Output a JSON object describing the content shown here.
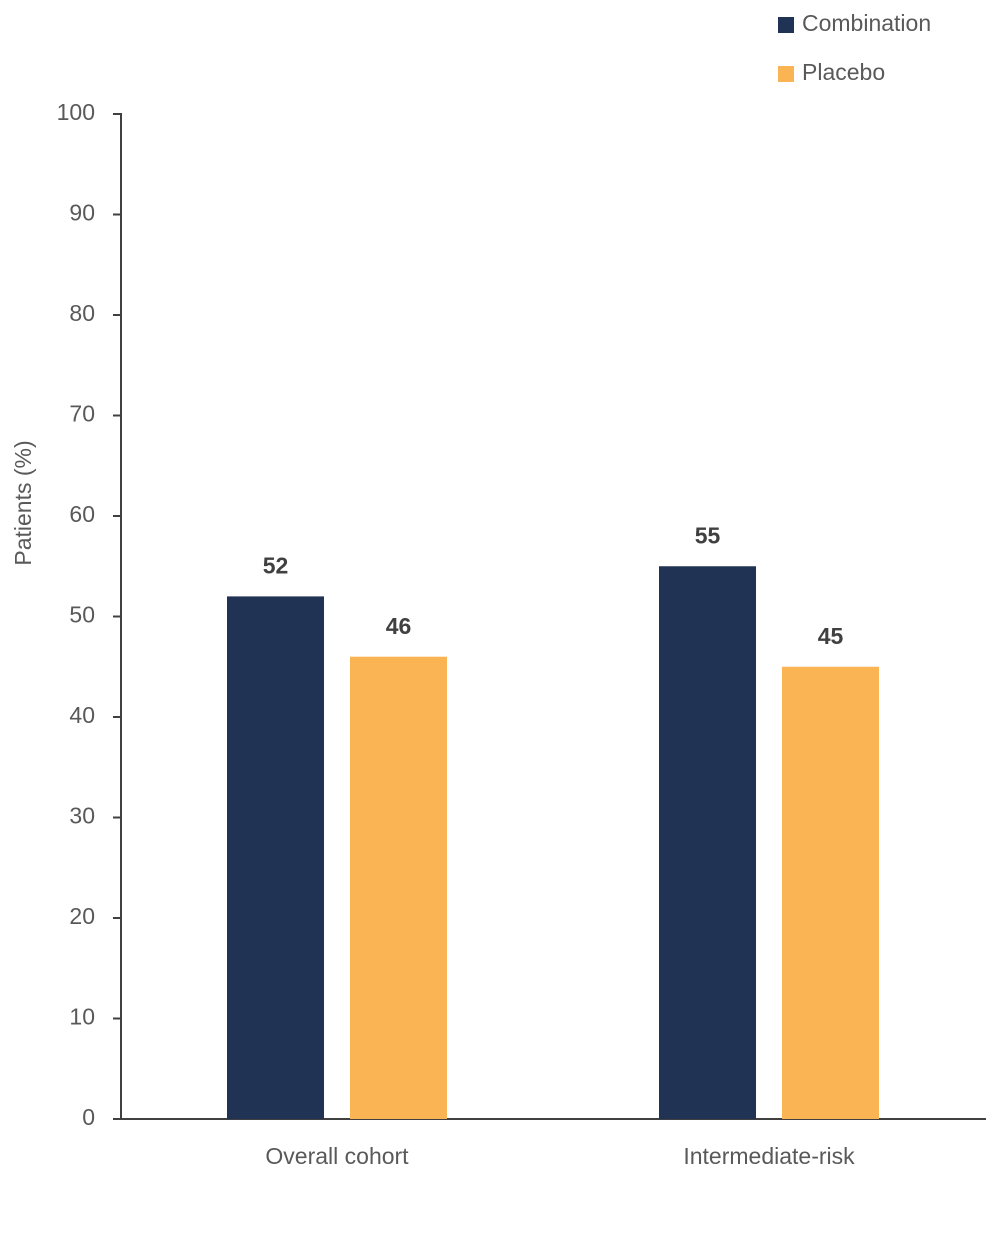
{
  "chart_data": {
    "type": "bar",
    "y_label": "Patients (%)",
    "categories": [
      "Overall cohort",
      "Intermediate-risk"
    ],
    "series": [
      {
        "name": "Combination",
        "color": "#203354",
        "values": [
          52,
          55
        ]
      },
      {
        "name": "Placebo",
        "color": "#fbb454",
        "values": [
          46,
          45
        ]
      }
    ],
    "ylim": [
      0,
      100
    ],
    "yticks": [
      0,
      10,
      20,
      30,
      40,
      50,
      60,
      70,
      80,
      90,
      100
    ],
    "grid": false,
    "legend": "top-right"
  }
}
